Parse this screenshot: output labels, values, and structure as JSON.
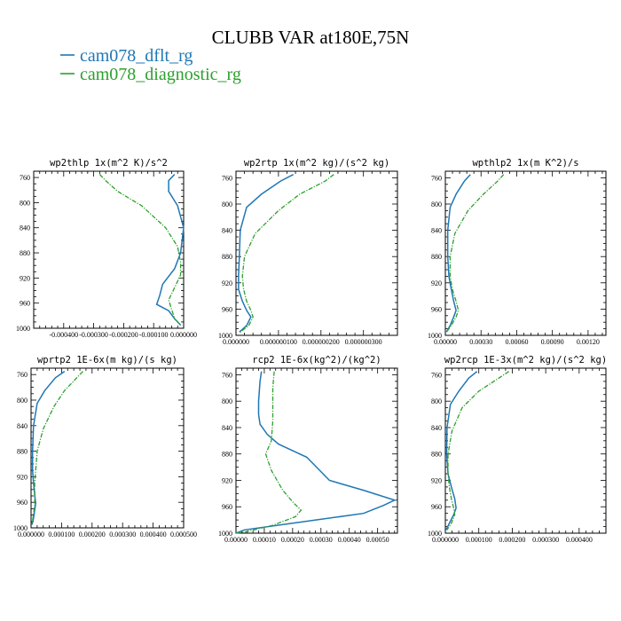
{
  "figure": {
    "title": "CLUBB VAR at180E,75N",
    "legend": [
      {
        "label": "cam078_dflt_rg",
        "color": "#1f77b4"
      },
      {
        "label": "cam078_diagnostic_rg",
        "color": "#2ca02c"
      }
    ]
  },
  "chart_data": [
    {
      "type": "line",
      "title": "wp2thlp  1x(m^2 K)/s^2",
      "xlim": [
        -0.0005,
        0.0
      ],
      "ylim": [
        1000,
        750
      ],
      "yticks": [
        "760",
        "800",
        "840",
        "880",
        "920",
        "960",
        "1000"
      ],
      "yvalues": [
        760,
        800,
        840,
        880,
        920,
        960,
        1000
      ],
      "xticks": [
        "-0.000400",
        "-0.000300",
        "-0.000200",
        "-0.000100",
        "0.000000"
      ],
      "xtickvalues": [
        -0.0004,
        -0.0003,
        -0.0002,
        -0.0001,
        0.0
      ],
      "series": [
        {
          "name": "cam078_dflt_rg",
          "x": [
            -3e-05,
            -5e-05,
            -5e-05,
            -2e-05,
            0.0,
            -1e-05,
            -3e-05,
            -7e-05,
            -8e-05,
            -9e-05,
            -5e-05,
            -3e-05,
            -1e-05
          ],
          "y": [
            755,
            765,
            782,
            805,
            840,
            880,
            905,
            930,
            948,
            962,
            972,
            985,
            995
          ]
        },
        {
          "name": "cam078_diagnostic_rg",
          "x": [
            -0.00028,
            -0.00026,
            -0.00022,
            -0.00014,
            -6e-05,
            -2e-05,
            -1e-05,
            -1e-05,
            -3e-05,
            -5e-05,
            -4e-05,
            -3e-05,
            -1e-05
          ],
          "y": [
            755,
            765,
            782,
            805,
            840,
            870,
            895,
            915,
            935,
            955,
            970,
            985,
            995
          ]
        }
      ]
    },
    {
      "type": "line",
      "title": "wp2rtp  1x(m^2 kg)/(s^2 kg)",
      "xlim": [
        0.0,
        3.8e-07
      ],
      "ylim": [
        1000,
        750
      ],
      "yticks": [
        "760",
        "800",
        "840",
        "880",
        "920",
        "960",
        "1000"
      ],
      "yvalues": [
        760,
        800,
        840,
        880,
        920,
        960,
        1000
      ],
      "xticks": [
        "0.000000",
        "0.000000100",
        "0.000000200",
        "0.000000300"
      ],
      "xtickvalues": [
        0.0,
        1e-07,
        2e-07,
        3e-07
      ],
      "series": [
        {
          "name": "cam078_dflt_rg",
          "x": [
            1.35e-07,
            1.05e-07,
            6e-08,
            2.5e-08,
            1e-08,
            8e-09,
            6e-09,
            6e-09,
            1.5e-08,
            2.5e-08,
            3.5e-08,
            2.5e-08,
            8e-09
          ],
          "y": [
            755,
            765,
            785,
            805,
            840,
            880,
            910,
            930,
            948,
            962,
            972,
            985,
            995
          ]
        },
        {
          "name": "cam078_diagnostic_rg",
          "x": [
            2.3e-07,
            2.1e-07,
            1.5e-07,
            1e-07,
            4.5e-08,
            2e-08,
            1.5e-08,
            1.8e-08,
            2.5e-08,
            3.5e-08,
            4e-08,
            3e-08,
            1e-08
          ],
          "y": [
            755,
            765,
            785,
            810,
            845,
            880,
            910,
            930,
            948,
            962,
            972,
            985,
            995
          ]
        }
      ]
    },
    {
      "type": "line",
      "title": "wpthlp2  1x(m K^2)/s",
      "xlim": [
        0.0,
        0.00135
      ],
      "ylim": [
        1000,
        750
      ],
      "yticks": [
        "760",
        "800",
        "840",
        "880",
        "920",
        "960",
        "1000"
      ],
      "yvalues": [
        760,
        800,
        840,
        880,
        920,
        960,
        1000
      ],
      "xticks": [
        "0.00000",
        "0.00030",
        "0.00060",
        "0.00090",
        "0.00120"
      ],
      "xtickvalues": [
        0.0,
        0.0003,
        0.0006,
        0.0009,
        0.0012
      ],
      "series": [
        {
          "name": "cam078_dflt_rg",
          "x": [
            0.00021,
            0.00016,
            9e-05,
            4e-05,
            2e-05,
            2e-05,
            3e-05,
            5e-05,
            7e-05,
            9e-05,
            7e-05,
            4e-05,
            1e-05
          ],
          "y": [
            755,
            765,
            785,
            805,
            840,
            880,
            910,
            930,
            948,
            962,
            972,
            985,
            995
          ]
        },
        {
          "name": "cam078_diagnostic_rg",
          "x": [
            0.00049,
            0.00044,
            0.00032,
            0.00019,
            8e-05,
            4e-05,
            4e-05,
            6e-05,
            9e-05,
            0.00011,
            9e-05,
            5e-05,
            1e-05
          ],
          "y": [
            755,
            765,
            785,
            810,
            845,
            880,
            910,
            930,
            948,
            962,
            972,
            985,
            995
          ]
        }
      ]
    },
    {
      "type": "line",
      "title": "wprtp2  1E-6x(m kg)/(s kg)",
      "xlim": [
        0.0,
        0.0005
      ],
      "ylim": [
        1000,
        750
      ],
      "yticks": [
        "760",
        "800",
        "840",
        "880",
        "920",
        "960",
        "1000"
      ],
      "yvalues": [
        760,
        800,
        840,
        880,
        920,
        960,
        1000
      ],
      "xticks": [
        "0.000000",
        "0.000100",
        "0.000200",
        "0.000300",
        "0.000400",
        "0.000500"
      ],
      "xtickvalues": [
        0.0,
        0.0001,
        0.0002,
        0.0003,
        0.0004,
        0.0005
      ],
      "series": [
        {
          "name": "cam078_dflt_rg",
          "x": [
            0.00011,
            8e-05,
            4.5e-05,
            2e-05,
            8e-06,
            5e-06,
            5e-06,
            8e-06,
            1.2e-05,
            1.5e-05,
            1.2e-05,
            8e-06,
            3e-06
          ],
          "y": [
            755,
            765,
            785,
            805,
            840,
            880,
            910,
            930,
            948,
            962,
            972,
            985,
            995
          ]
        },
        {
          "name": "cam078_diagnostic_rg",
          "x": [
            0.00017,
            0.00015,
            0.00011,
            7.5e-05,
            4e-05,
            2e-05,
            1.5e-05,
            1.2e-05,
            1.2e-05,
            1.2e-05,
            1e-05,
            6e-06,
            2e-06
          ],
          "y": [
            755,
            765,
            785,
            810,
            845,
            880,
            910,
            930,
            948,
            962,
            972,
            985,
            995
          ]
        }
      ]
    },
    {
      "type": "line",
      "title": "rcp2  1E-6x(kg^2)/(kg^2)",
      "xlim": [
        0.0,
        0.00057
      ],
      "ylim": [
        1000,
        750
      ],
      "yticks": [
        "760",
        "800",
        "840",
        "880",
        "920",
        "960",
        "1000"
      ],
      "yvalues": [
        760,
        800,
        840,
        880,
        920,
        960,
        1000
      ],
      "xticks": [
        "0.00000",
        "0.00010",
        "0.00020",
        "0.00030",
        "0.00040",
        "0.00050"
      ],
      "xtickvalues": [
        0.0,
        0.0001,
        0.0002,
        0.0003,
        0.0004,
        0.0005
      ],
      "series": [
        {
          "name": "cam078_dflt_rg",
          "x": [
            9e-05,
            8.5e-05,
            8e-05,
            8e-05,
            8.5e-05,
            0.00011,
            0.00015,
            0.00025,
            0.00033,
            0.00045,
            0.00056,
            0.00052,
            0.00045,
            0.0002,
            3e-05,
            0.0
          ],
          "y": [
            755,
            770,
            800,
            820,
            835,
            850,
            865,
            885,
            920,
            935,
            950,
            958,
            970,
            985,
            995,
            1000
          ]
        },
        {
          "name": "cam078_diagnostic_rg",
          "x": [
            0.000135,
            0.00013,
            0.00013,
            0.00013,
            0.000125,
            0.000105,
            0.000125,
            0.000165,
            0.000205,
            0.00023,
            0.00021,
            0.00013,
            3.5e-05,
            0.0
          ],
          "y": [
            755,
            780,
            805,
            830,
            860,
            880,
            905,
            935,
            955,
            965,
            975,
            988,
            998,
            1000
          ]
        }
      ]
    },
    {
      "type": "line",
      "title": "wp2rcp  1E-3x(m^2 kg)/(s^2 kg)",
      "xlim": [
        0.0,
        0.00048
      ],
      "ylim": [
        1000,
        750
      ],
      "yticks": [
        "760",
        "800",
        "840",
        "880",
        "920",
        "960",
        "1000"
      ],
      "yvalues": [
        760,
        800,
        840,
        880,
        920,
        960,
        1000
      ],
      "xticks": [
        "0.000000",
        "0.000100",
        "0.000200",
        "0.000300",
        "0.000400"
      ],
      "xtickvalues": [
        0.0,
        0.0001,
        0.0002,
        0.0003,
        0.0004
      ],
      "series": [
        {
          "name": "cam078_dflt_rg",
          "x": [
            9.5e-05,
            7e-05,
            4e-05,
            1.5e-05,
            5e-06,
            4e-06,
            8e-06,
            1.8e-05,
            2.8e-05,
            3.2e-05,
            2.5e-05,
            1.2e-05,
            2e-06
          ],
          "y": [
            755,
            765,
            785,
            805,
            840,
            880,
            910,
            930,
            948,
            962,
            972,
            985,
            995
          ]
        },
        {
          "name": "cam078_diagnostic_rg",
          "x": [
            0.00019,
            0.00016,
            0.0001,
            5e-05,
            2e-05,
            8e-06,
            8e-06,
            1.2e-05,
            1.8e-05,
            2.5e-05,
            2.8e-05,
            1.8e-05,
            5e-06
          ],
          "y": [
            755,
            765,
            785,
            810,
            845,
            880,
            910,
            930,
            948,
            962,
            972,
            985,
            995
          ]
        }
      ]
    }
  ]
}
